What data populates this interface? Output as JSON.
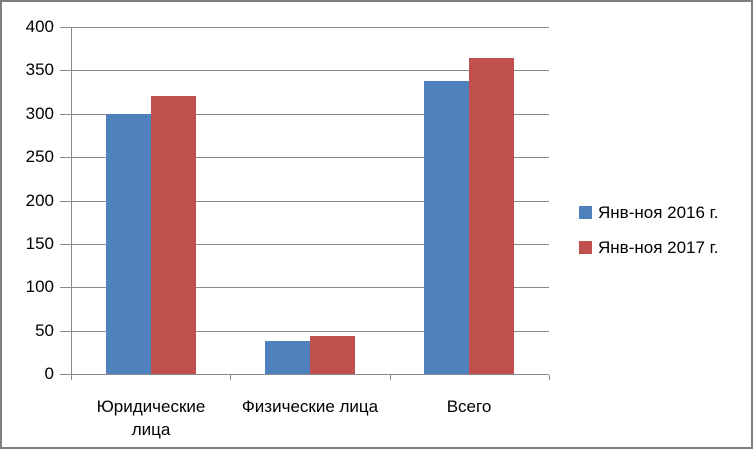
{
  "chart_data": {
    "type": "bar",
    "title": "",
    "xlabel": "",
    "ylabel": "",
    "categories": [
      "Юридические лица",
      "Физические лица",
      "Всего"
    ],
    "categories_lines": [
      [
        "Юридические",
        "лица"
      ],
      [
        "Физические лица"
      ],
      [
        "Всего"
      ]
    ],
    "series": [
      {
        "name": "Янв-ноя 2016 г.",
        "color": "#4F81BD",
        "values": [
          300,
          38,
          338
        ]
      },
      {
        "name": "Янв-ноя 2017 г.",
        "color": "#C0504D",
        "values": [
          320,
          44,
          364
        ]
      }
    ],
    "ylim": [
      0,
      400
    ],
    "yticks": [
      0,
      50,
      100,
      150,
      200,
      250,
      300,
      350,
      400
    ],
    "grid": true,
    "legend_position": "right"
  },
  "colors": {
    "grid": "#8A8A8A",
    "axis": "#8A8A8A",
    "frame_border": "#7E7E7E",
    "background": "#FFFFFF",
    "text": "#000000",
    "series_2016": "#4F81BD",
    "series_2017": "#C0504D"
  }
}
